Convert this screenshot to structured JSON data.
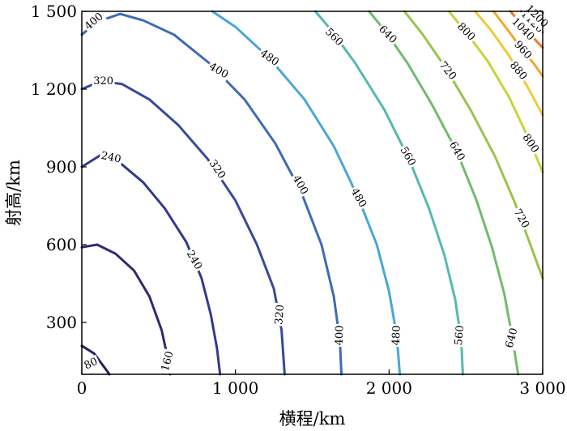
{
  "chart_data": {
    "type": "contour",
    "xlabel": "横程/km",
    "ylabel": "射高/km",
    "xlim": [
      0,
      3000
    ],
    "ylim": [
      100,
      1500
    ],
    "xticks": [
      {
        "value": 0,
        "label": "0"
      },
      {
        "value": 1000,
        "label": "1 000"
      },
      {
        "value": 2000,
        "label": "2 000"
      },
      {
        "value": 3000,
        "label": "3 000"
      }
    ],
    "yticks": [
      {
        "value": 300,
        "label": "300"
      },
      {
        "value": 600,
        "label": "600"
      },
      {
        "value": 900,
        "label": "900"
      },
      {
        "value": 1200,
        "label": "1 200"
      },
      {
        "value": 1500,
        "label": "1 500"
      }
    ],
    "grid": false,
    "contours": [
      {
        "level": "80",
        "color": "#2c1f5c",
        "points": [
          [
            0,
            210
          ],
          [
            80,
            180
          ],
          [
            130,
            140
          ],
          [
            180,
            100
          ]
        ],
        "labels": [
          {
            "x": 60,
            "y": 140,
            "angle": -25
          }
        ]
      },
      {
        "level": "160",
        "color": "#2f2a74",
        "points": [
          [
            0,
            590
          ],
          [
            100,
            600
          ],
          [
            220,
            565
          ],
          [
            340,
            500
          ],
          [
            440,
            400
          ],
          [
            520,
            270
          ],
          [
            560,
            160
          ],
          [
            575,
            100
          ]
        ],
        "labels": [
          {
            "x": 560,
            "y": 150,
            "angle": -75
          }
        ]
      },
      {
        "level": "240",
        "color": "#333a8a",
        "points": [
          [
            0,
            900
          ],
          [
            120,
            945
          ],
          [
            250,
            915
          ],
          [
            400,
            840
          ],
          [
            540,
            740
          ],
          [
            680,
            610
          ],
          [
            780,
            470
          ],
          [
            840,
            330
          ],
          [
            880,
            200
          ],
          [
            900,
            100
          ]
        ],
        "labels": [
          {
            "x": 190,
            "y": 935,
            "angle": 12
          },
          {
            "x": 730,
            "y": 540,
            "angle": 60
          }
        ]
      },
      {
        "level": "320",
        "color": "#374a9a",
        "points": [
          [
            0,
            1200
          ],
          [
            120,
            1230
          ],
          [
            260,
            1220
          ],
          [
            440,
            1160
          ],
          [
            630,
            1060
          ],
          [
            820,
            930
          ],
          [
            1000,
            770
          ],
          [
            1140,
            600
          ],
          [
            1250,
            430
          ],
          [
            1300,
            270
          ],
          [
            1320,
            100
          ]
        ],
        "labels": [
          {
            "x": 140,
            "y": 1230,
            "angle": 0
          },
          {
            "x": 880,
            "y": 890,
            "angle": 55
          },
          {
            "x": 1290,
            "y": 330,
            "angle": -85
          }
        ]
      },
      {
        "level": "400",
        "color": "#3d6bb5",
        "points": [
          [
            0,
            1410
          ],
          [
            100,
            1460
          ],
          [
            250,
            1490
          ],
          [
            400,
            1465
          ],
          [
            600,
            1410
          ],
          [
            830,
            1300
          ],
          [
            1060,
            1160
          ],
          [
            1260,
            990
          ],
          [
            1430,
            800
          ],
          [
            1560,
            600
          ],
          [
            1640,
            400
          ],
          [
            1680,
            230
          ],
          [
            1690,
            100
          ]
        ],
        "labels": [
          {
            "x": 80,
            "y": 1460,
            "angle": -40
          },
          {
            "x": 890,
            "y": 1270,
            "angle": 30
          },
          {
            "x": 1420,
            "y": 830,
            "angle": 60
          },
          {
            "x": 1680,
            "y": 250,
            "angle": -88
          }
        ]
      },
      {
        "level": "480",
        "color": "#4aa7d6",
        "points": [
          [
            850,
            1500
          ],
          [
            1000,
            1440
          ],
          [
            1220,
            1320
          ],
          [
            1450,
            1160
          ],
          [
            1640,
            980
          ],
          [
            1800,
            780
          ],
          [
            1920,
            600
          ],
          [
            2000,
            420
          ],
          [
            2050,
            250
          ],
          [
            2070,
            100
          ]
        ],
        "labels": [
          {
            "x": 1220,
            "y": 1320,
            "angle": 35
          },
          {
            "x": 1800,
            "y": 780,
            "angle": 60
          },
          {
            "x": 2050,
            "y": 250,
            "angle": -88
          }
        ]
      },
      {
        "level": "560",
        "color": "#55b9b0",
        "points": [
          [
            1520,
            1500
          ],
          [
            1620,
            1430
          ],
          [
            1780,
            1300
          ],
          [
            1970,
            1120
          ],
          [
            2130,
            930
          ],
          [
            2260,
            740
          ],
          [
            2360,
            560
          ],
          [
            2430,
            390
          ],
          [
            2470,
            230
          ],
          [
            2480,
            100
          ]
        ],
        "labels": [
          {
            "x": 1640,
            "y": 1400,
            "angle": 45
          },
          {
            "x": 2120,
            "y": 940,
            "angle": 60
          },
          {
            "x": 2460,
            "y": 250,
            "angle": -85
          }
        ]
      },
      {
        "level": "640",
        "color": "#72bb6e",
        "points": [
          [
            1870,
            1500
          ],
          [
            1980,
            1420
          ],
          [
            2120,
            1300
          ],
          [
            2280,
            1140
          ],
          [
            2440,
            960
          ],
          [
            2570,
            770
          ],
          [
            2670,
            590
          ],
          [
            2750,
            410
          ],
          [
            2800,
            250
          ],
          [
            2840,
            100
          ]
        ],
        "labels": [
          {
            "x": 1990,
            "y": 1410,
            "angle": 45
          },
          {
            "x": 2440,
            "y": 960,
            "angle": 60
          },
          {
            "x": 2800,
            "y": 240,
            "angle": -75
          }
        ]
      },
      {
        "level": "720",
        "color": "#98c44c",
        "points": [
          [
            2100,
            1500
          ],
          [
            2220,
            1410
          ],
          [
            2370,
            1280
          ],
          [
            2530,
            1120
          ],
          [
            2690,
            940
          ],
          [
            2820,
            760
          ],
          [
            2920,
            600
          ],
          [
            3000,
            470
          ]
        ],
        "labels": [
          {
            "x": 2380,
            "y": 1270,
            "angle": 50
          },
          {
            "x": 2860,
            "y": 700,
            "angle": 60
          }
        ]
      },
      {
        "level": "800",
        "color": "#c6d43a",
        "points": [
          [
            2390,
            1500
          ],
          [
            2500,
            1420
          ],
          [
            2640,
            1310
          ],
          [
            2780,
            1170
          ],
          [
            2900,
            1020
          ],
          [
            3000,
            880
          ]
        ],
        "labels": [
          {
            "x": 2500,
            "y": 1420,
            "angle": 45
          },
          {
            "x": 2920,
            "y": 990,
            "angle": 55
          }
        ]
      },
      {
        "level": "880",
        "color": "#f0c93a",
        "points": [
          [
            2560,
            1500
          ],
          [
            2660,
            1430
          ],
          [
            2780,
            1330
          ],
          [
            2900,
            1210
          ],
          [
            3000,
            1100
          ]
        ],
        "labels": [
          {
            "x": 2840,
            "y": 1270,
            "angle": 50
          }
        ]
      },
      {
        "level": "960",
        "color": "#f6a42e",
        "points": [
          [
            2680,
            1500
          ],
          [
            2770,
            1430
          ],
          [
            2870,
            1350
          ],
          [
            2940,
            1300
          ],
          [
            3000,
            1250
          ]
        ],
        "labels": [
          {
            "x": 2870,
            "y": 1350,
            "angle": 48
          }
        ]
      },
      {
        "level": "1040",
        "color": "#f07a26",
        "points": [
          [
            2790,
            1500
          ],
          [
            2860,
            1450
          ],
          [
            2920,
            1410
          ],
          [
            3000,
            1360
          ]
        ],
        "labels": [
          {
            "x": 2870,
            "y": 1430,
            "angle": 45
          }
        ]
      },
      {
        "level": "1120",
        "color": "#e54a22",
        "points": [
          [
            2860,
            1500
          ],
          [
            2920,
            1460
          ],
          [
            3000,
            1420
          ]
        ],
        "labels": [
          {
            "x": 2930,
            "y": 1460,
            "angle": 45
          }
        ]
      },
      {
        "level": "1200",
        "color": "#c42a2a",
        "points": [
          [
            2910,
            1500
          ],
          [
            2970,
            1470
          ],
          [
            3000,
            1455
          ]
        ],
        "labels": [
          {
            "x": 2960,
            "y": 1480,
            "angle": 45
          }
        ]
      },
      {
        "level": "",
        "color": "#9a2222",
        "points": [
          [
            2950,
            1500
          ],
          [
            3000,
            1480
          ]
        ],
        "labels": []
      },
      {
        "level": "",
        "color": "#6a1a1a",
        "points": [
          [
            2985,
            1500
          ],
          [
            3000,
            1494
          ]
        ],
        "labels": []
      }
    ]
  }
}
